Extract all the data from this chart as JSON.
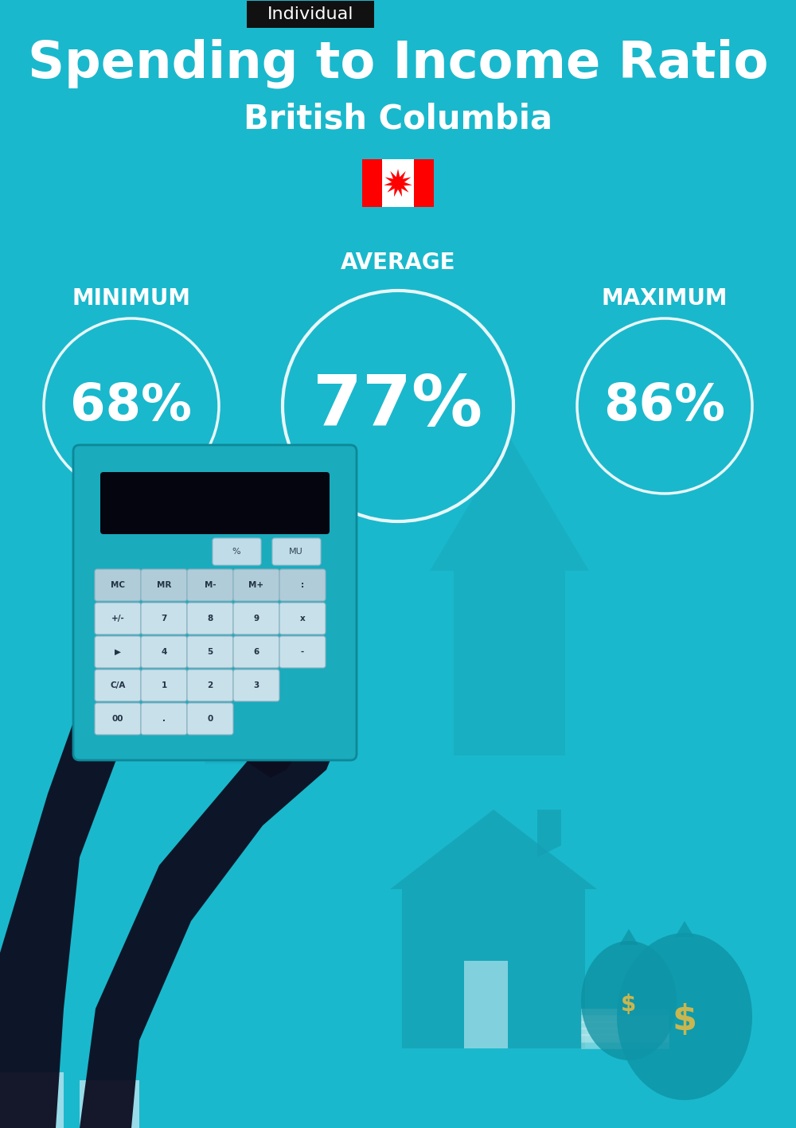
{
  "bg_color": "#1ab8cc",
  "title": "Spending to Income Ratio",
  "subtitle": "British Columbia",
  "badge_text": "Individual",
  "badge_bg": "#111111",
  "badge_text_color": "#ffffff",
  "title_color": "#ffffff",
  "subtitle_color": "#ffffff",
  "label_min": "MINIMUM",
  "label_avg": "AVERAGE",
  "label_max": "MAXIMUM",
  "value_min": "68%",
  "value_avg": "77%",
  "value_max": "86%",
  "text_color": "#ffffff",
  "label_fontsize": 20,
  "value_fontsize_small": 46,
  "value_fontsize_large": 64,
  "title_fontsize": 46,
  "subtitle_fontsize": 30,
  "arrow_color": "#17a8bc",
  "house_color": "#15a0b4",
  "calc_body_color": "#1aafca",
  "calc_screen_color": "#0a0a14",
  "hand_color": "#0d0d20",
  "cuff_color": "#a8e0ec"
}
